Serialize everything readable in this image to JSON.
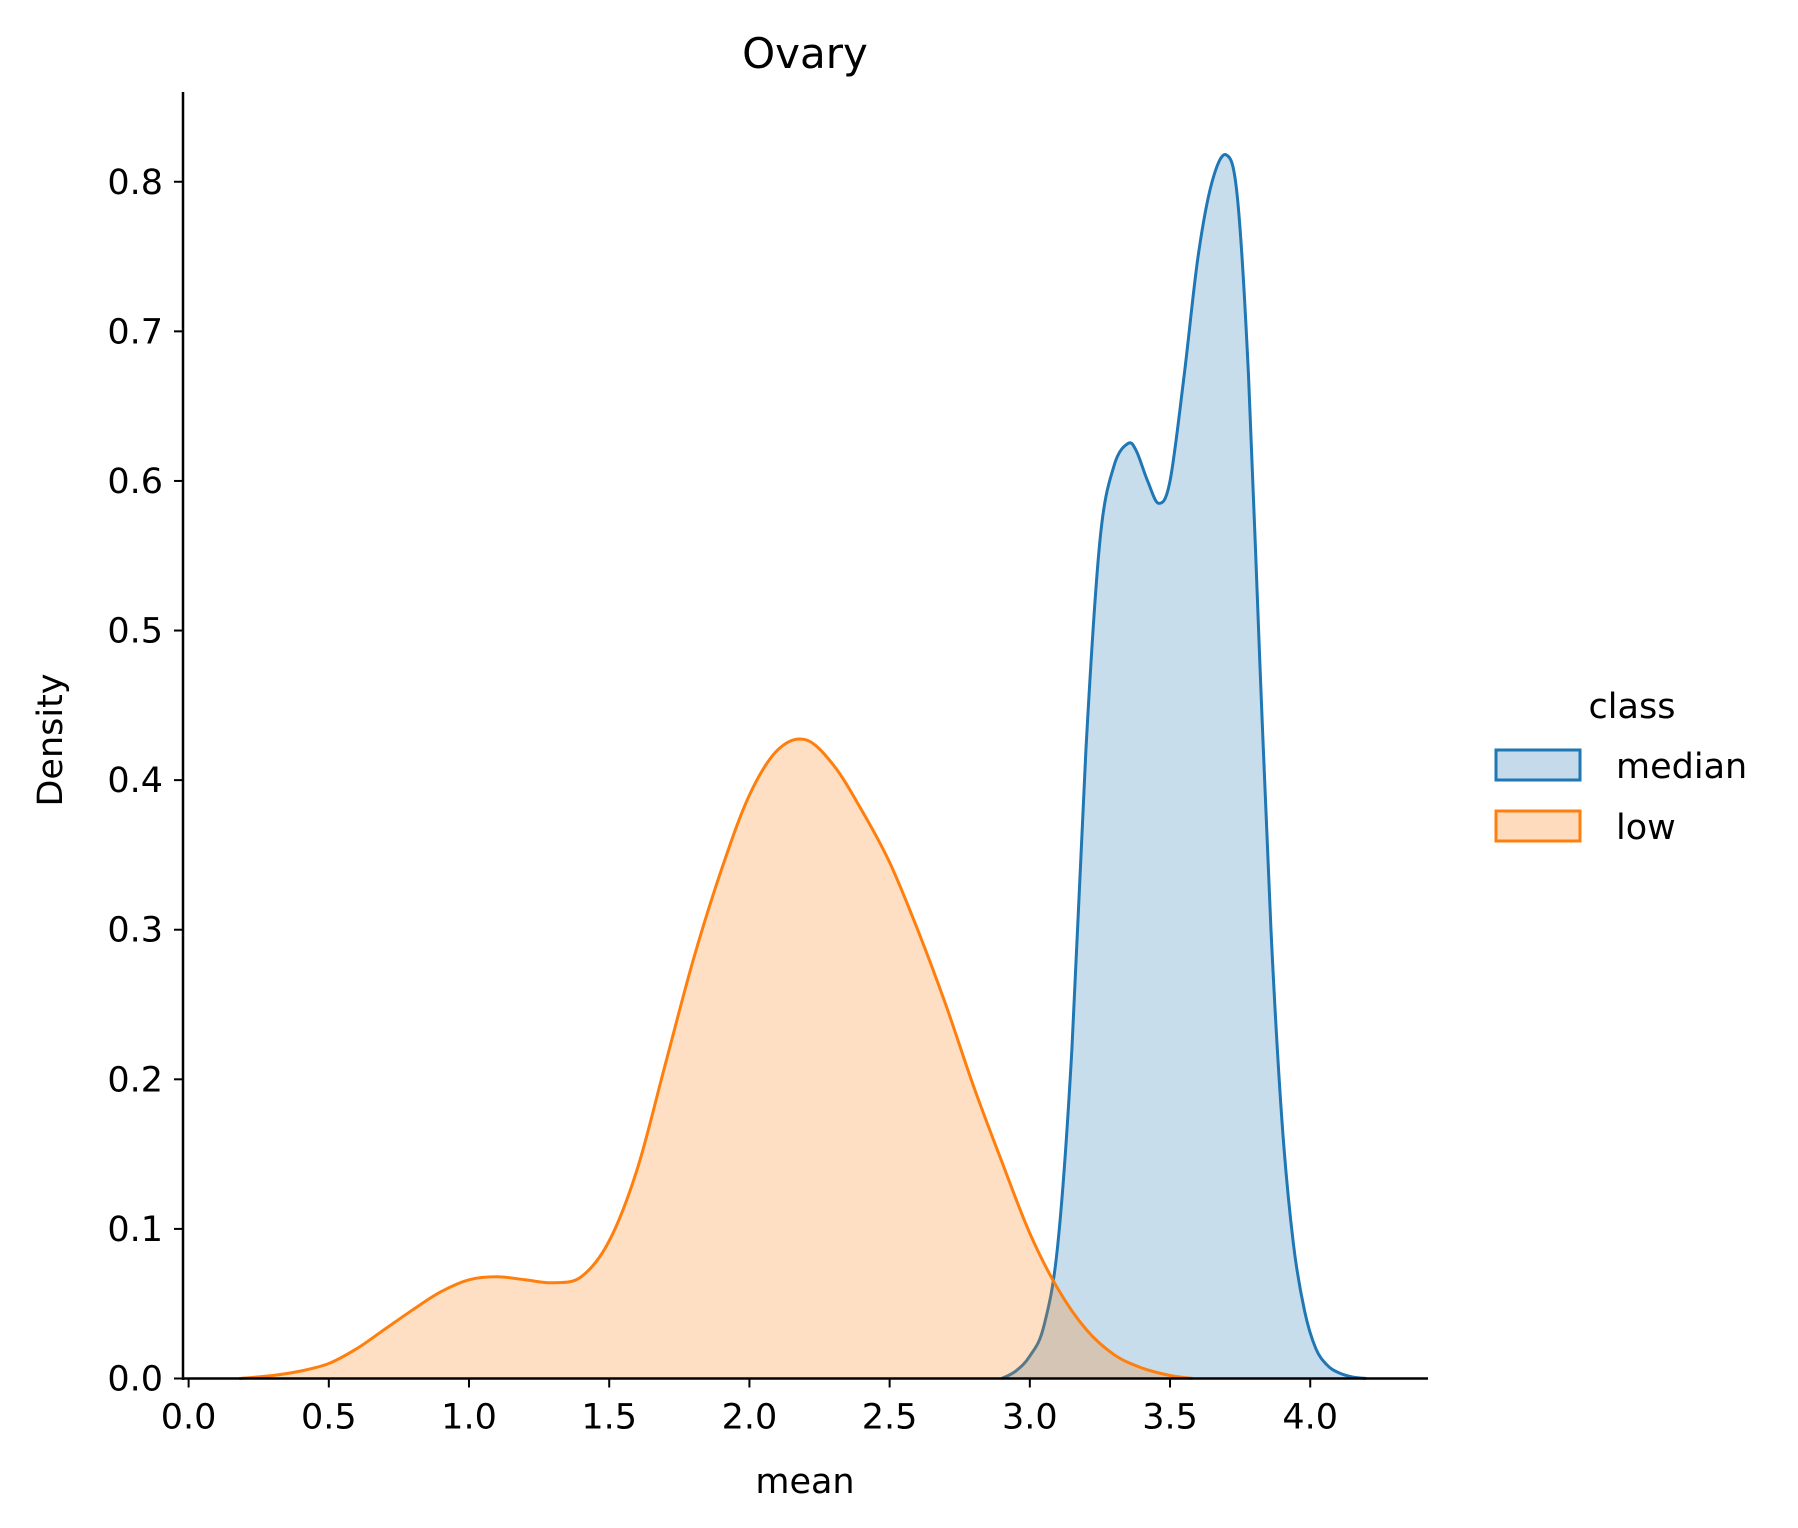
{
  "chart_data": {
    "type": "area",
    "title": "Ovary",
    "xlabel": "mean",
    "ylabel": "Density",
    "xlim": [
      -0.02,
      4.42
    ],
    "ylim": [
      0,
      0.86
    ],
    "xticks": [
      0.0,
      0.5,
      1.0,
      1.5,
      2.0,
      2.5,
      3.0,
      3.5,
      4.0
    ],
    "xtick_labels": [
      "0.0",
      "0.5",
      "1.0",
      "1.5",
      "2.0",
      "2.5",
      "3.0",
      "3.5",
      "4.0"
    ],
    "yticks": [
      0.0,
      0.1,
      0.2,
      0.3,
      0.4,
      0.5,
      0.6,
      0.7,
      0.8
    ],
    "ytick_labels": [
      "0.0",
      "0.1",
      "0.2",
      "0.3",
      "0.4",
      "0.5",
      "0.6",
      "0.7",
      "0.8"
    ],
    "grid": false,
    "legend": {
      "title": "class",
      "placement": "right",
      "entries": [
        "median",
        "low"
      ]
    },
    "series": [
      {
        "name": "median",
        "color": "#1f77b4",
        "fill": "#c5dbeb",
        "x": [
          2.9,
          2.95,
          3.0,
          3.05,
          3.1,
          3.15,
          3.2,
          3.25,
          3.3,
          3.35,
          3.38,
          3.42,
          3.46,
          3.5,
          3.55,
          3.6,
          3.65,
          3.7,
          3.74,
          3.78,
          3.82,
          3.86,
          3.9,
          3.94,
          3.98,
          4.02,
          4.06,
          4.1,
          4.15,
          4.2
        ],
        "y": [
          0.0,
          0.005,
          0.015,
          0.035,
          0.09,
          0.22,
          0.42,
          0.56,
          0.61,
          0.625,
          0.62,
          0.6,
          0.585,
          0.6,
          0.67,
          0.75,
          0.8,
          0.818,
          0.79,
          0.67,
          0.48,
          0.3,
          0.17,
          0.09,
          0.045,
          0.02,
          0.009,
          0.004,
          0.001,
          0.0
        ]
      },
      {
        "name": "low",
        "color": "#ff7f0e",
        "fill": "#fedbbc",
        "x": [
          0.18,
          0.3,
          0.4,
          0.5,
          0.6,
          0.7,
          0.8,
          0.9,
          1.0,
          1.1,
          1.2,
          1.3,
          1.4,
          1.5,
          1.6,
          1.7,
          1.8,
          1.9,
          2.0,
          2.1,
          2.2,
          2.3,
          2.4,
          2.5,
          2.6,
          2.7,
          2.8,
          2.9,
          3.0,
          3.1,
          3.2,
          3.3,
          3.4,
          3.5,
          3.58
        ],
        "y": [
          0.0,
          0.002,
          0.005,
          0.01,
          0.02,
          0.033,
          0.046,
          0.058,
          0.066,
          0.068,
          0.066,
          0.064,
          0.068,
          0.092,
          0.14,
          0.21,
          0.28,
          0.34,
          0.39,
          0.42,
          0.427,
          0.41,
          0.38,
          0.345,
          0.3,
          0.25,
          0.195,
          0.145,
          0.097,
          0.06,
          0.033,
          0.016,
          0.007,
          0.002,
          0.0
        ]
      }
    ]
  }
}
